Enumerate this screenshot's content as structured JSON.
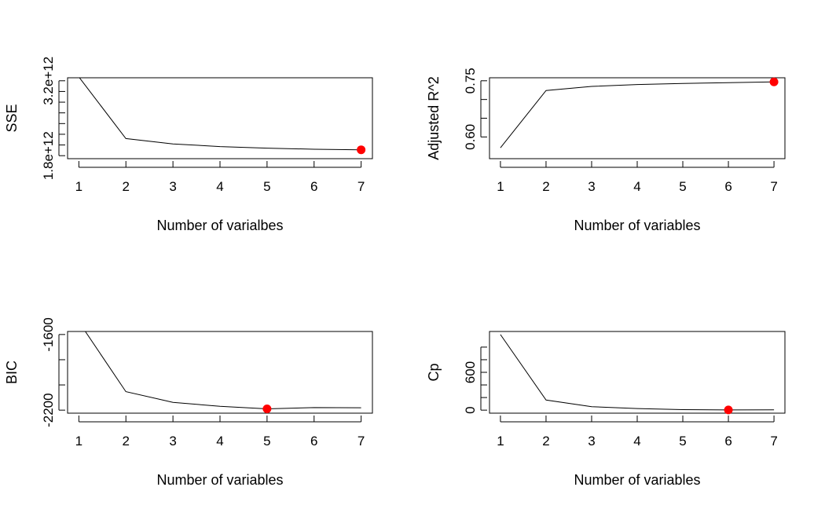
{
  "colors": {
    "line": "#000000",
    "highlight": "#ff0000",
    "background": "#ffffff"
  },
  "chart_data": [
    {
      "type": "line",
      "xlabel": "Number of varialbes",
      "ylabel": "SSE",
      "x": [
        1,
        2,
        3,
        4,
        5,
        6,
        7
      ],
      "values": [
        3270000000000.0,
        2120000000000.0,
        2020000000000.0,
        1970000000000.0,
        1940000000000.0,
        1920000000000.0,
        1910000000000.0
      ],
      "xlim": [
        1,
        7
      ],
      "ylim": [
        1800000000000.0,
        3200000000000.0
      ],
      "xticks": [
        1,
        2,
        3,
        4,
        5,
        6,
        7
      ],
      "xtick_labels": [
        "1",
        "2",
        "3",
        "4",
        "5",
        "6",
        "7"
      ],
      "yticks": [
        1800000000000.0,
        2000000000000.0,
        2200000000000.0,
        2400000000000.0,
        2600000000000.0,
        2800000000000.0,
        3000000000000.0,
        3200000000000.0
      ],
      "ytick_labels": [
        "1.8e+12",
        "",
        "",
        "",
        "",
        "",
        "",
        "3.2e+12"
      ],
      "highlight_point": {
        "x": 7,
        "y": 1910000000000.0
      },
      "grid": false
    },
    {
      "type": "line",
      "xlabel": "Number of variables",
      "ylabel": "Adjusted R^2",
      "x": [
        1,
        2,
        3,
        4,
        5,
        6,
        7
      ],
      "values": [
        0.571,
        0.724,
        0.735,
        0.74,
        0.743,
        0.745,
        0.747
      ],
      "xlim": [
        1,
        7
      ],
      "ylim": [
        0.55,
        0.75
      ],
      "xticks": [
        1,
        2,
        3,
        4,
        5,
        6,
        7
      ],
      "xtick_labels": [
        "1",
        "2",
        "3",
        "4",
        "5",
        "6",
        "7"
      ],
      "yticks": [
        0.6,
        0.65,
        0.7,
        0.75
      ],
      "ytick_labels": [
        "0.60",
        "",
        "",
        "0.75"
      ],
      "highlight_point": {
        "x": 7,
        "y": 0.747
      },
      "grid": false
    },
    {
      "type": "line",
      "xlabel": "Number of variables",
      "ylabel": "BIC",
      "x": [
        1,
        2,
        3,
        4,
        5,
        6,
        7
      ],
      "values": [
        -1500,
        -2053,
        -2138,
        -2170,
        -2190,
        -2180,
        -2181
      ],
      "xlim": [
        1,
        7
      ],
      "ylim": [
        -2200,
        -1600
      ],
      "xticks": [
        1,
        2,
        3,
        4,
        5,
        6,
        7
      ],
      "xtick_labels": [
        "1",
        "2",
        "3",
        "4",
        "5",
        "6",
        "7"
      ],
      "yticks": [
        -2200,
        -2000,
        -1800,
        -1600
      ],
      "ytick_labels": [
        "-2200",
        "",
        "",
        "-1600"
      ],
      "highlight_point": {
        "x": 5,
        "y": -2190
      },
      "grid": false
    },
    {
      "type": "line",
      "xlabel": "Number of variables",
      "ylabel": "Cp",
      "x": [
        1,
        2,
        3,
        4,
        5,
        6,
        7
      ],
      "values": [
        1200,
        160,
        55,
        25,
        8,
        3,
        5
      ],
      "xlim": [
        1,
        7
      ],
      "ylim": [
        0,
        1200
      ],
      "xticks": [
        1,
        2,
        3,
        4,
        5,
        6,
        7
      ],
      "xtick_labels": [
        "1",
        "2",
        "3",
        "4",
        "5",
        "6",
        "7"
      ],
      "yticks": [
        0,
        200,
        400,
        600,
        800,
        1000
      ],
      "ytick_labels": [
        "0",
        "",
        "",
        "600",
        "",
        ""
      ],
      "highlight_point": {
        "x": 6,
        "y": 3
      },
      "grid": false
    }
  ]
}
